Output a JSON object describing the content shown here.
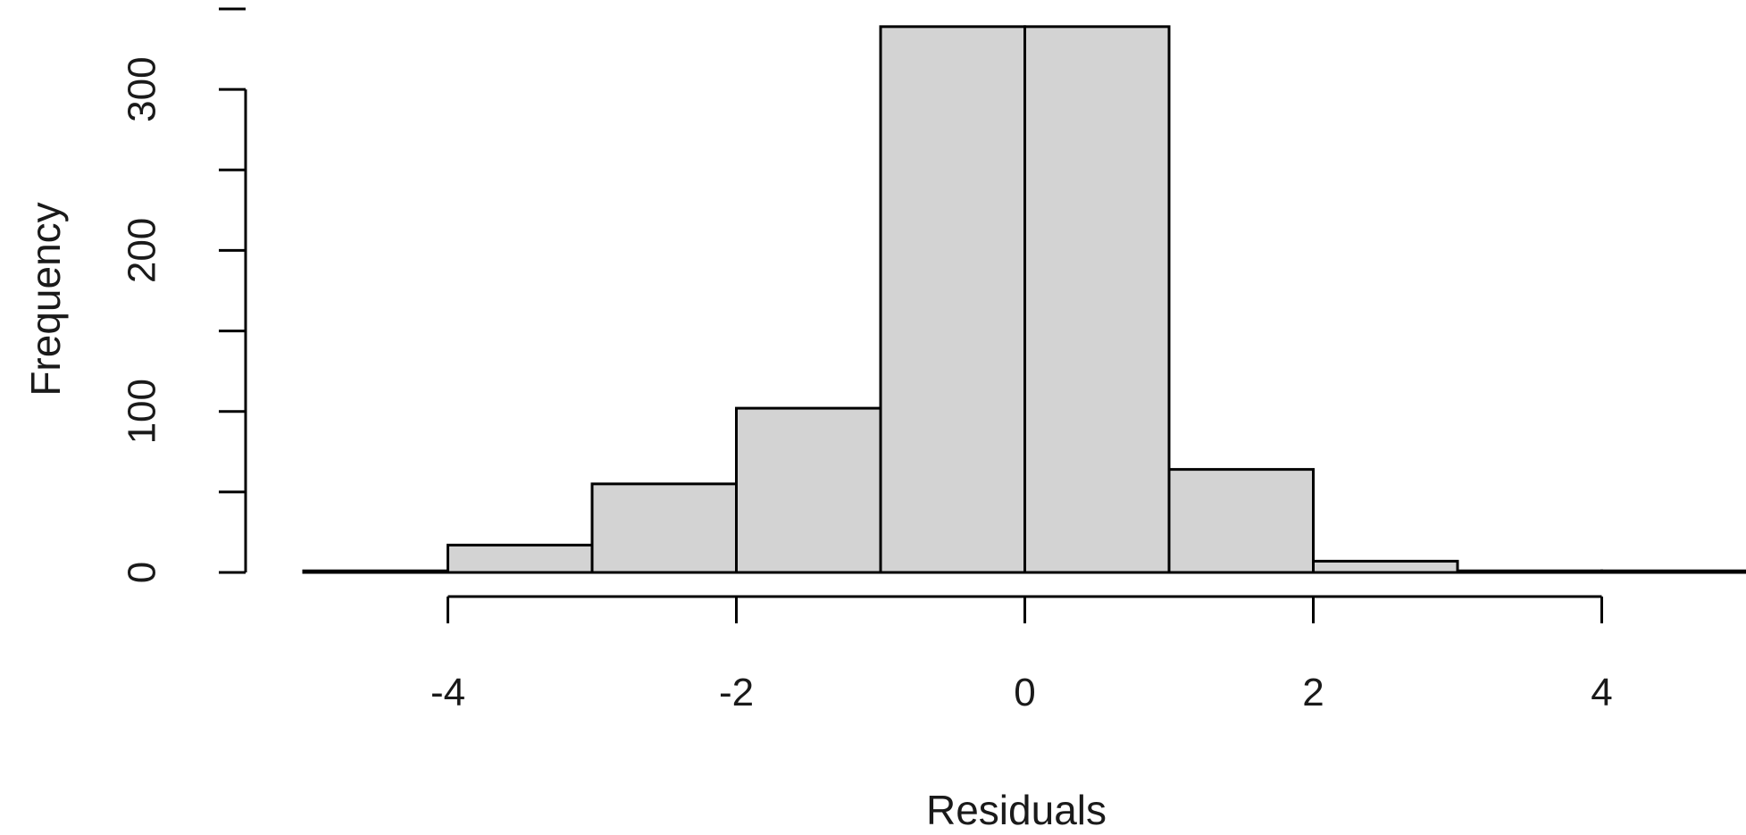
{
  "chart_data": {
    "type": "bar",
    "title": "",
    "xlabel": "Residuals",
    "ylabel": "Frequency",
    "bins": [
      {
        "x0": -5,
        "x1": -4,
        "count": 1
      },
      {
        "x0": -4,
        "x1": -3,
        "count": 17
      },
      {
        "x0": -3,
        "x1": -2,
        "count": 55
      },
      {
        "x0": -2,
        "x1": -1,
        "count": 102
      },
      {
        "x0": -1,
        "x1": 0,
        "count": 339
      },
      {
        "x0": 0,
        "x1": 1,
        "count": 339
      },
      {
        "x0": 1,
        "x1": 2,
        "count": 64
      },
      {
        "x0": 2,
        "x1": 3,
        "count": 7
      },
      {
        "x0": 3,
        "x1": 4,
        "count": 1
      },
      {
        "x0": 4,
        "x1": 5,
        "count": 1
      }
    ],
    "x_ticks": [
      "-4",
      "-2",
      "0",
      "2",
      "4"
    ],
    "y_ticks": [
      "0",
      "100",
      "200",
      "300"
    ],
    "xlim": [
      -5,
      5
    ],
    "ylim": [
      0,
      350
    ],
    "grid": false,
    "bar_fill": "#d3d3d3",
    "bar_stroke": "#000000"
  }
}
